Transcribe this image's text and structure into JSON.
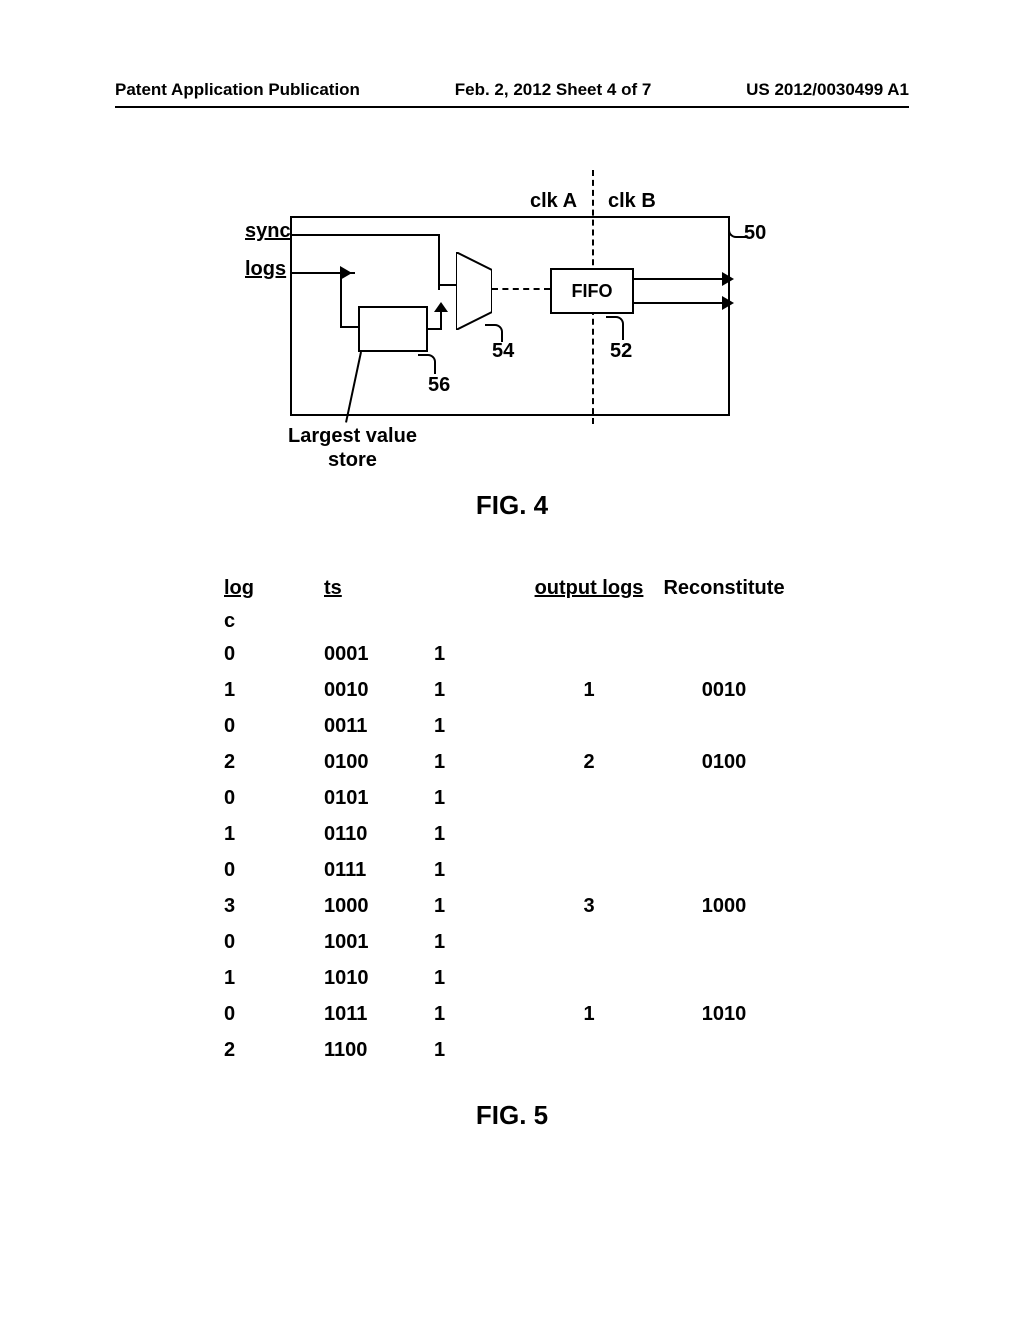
{
  "header": {
    "left": "Patent Application Publication",
    "center": "Feb. 2, 2012   Sheet 4 of 7",
    "right": "US 2012/0030499 A1"
  },
  "fig4": {
    "label_sync": "sync",
    "label_logs": "logs",
    "label_clka": "clk A",
    "label_clkb": "clk B",
    "fifo_label": "FIFO",
    "ref_50": "50",
    "ref_52": "52",
    "ref_54": "54",
    "ref_56": "56",
    "lv_store_label_line1": "Largest value",
    "lv_store_label_line2": "store",
    "caption": "FIG. 4"
  },
  "fig5": {
    "headers": {
      "log": "log",
      "ts": "ts",
      "output_logs": "output logs",
      "reconstitute": "Reconstitute"
    },
    "c_label": "c",
    "rows": [
      {
        "log": "0",
        "ts": "0001",
        "bit": "1",
        "output": "",
        "recon": ""
      },
      {
        "log": "1",
        "ts": "0010",
        "bit": "1",
        "output": "1",
        "recon": "0010"
      },
      {
        "log": "0",
        "ts": "0011",
        "bit": "1",
        "output": "",
        "recon": ""
      },
      {
        "log": "2",
        "ts": "0100",
        "bit": "1",
        "output": "2",
        "recon": "0100"
      },
      {
        "log": "0",
        "ts": "0101",
        "bit": "1",
        "output": "",
        "recon": ""
      },
      {
        "log": "1",
        "ts": "0110",
        "bit": "1",
        "output": "",
        "recon": ""
      },
      {
        "log": "0",
        "ts": "0111",
        "bit": "1",
        "output": "",
        "recon": ""
      },
      {
        "log": "3",
        "ts": "1000",
        "bit": "1",
        "output": "3",
        "recon": "1000"
      },
      {
        "log": "0",
        "ts": "1001",
        "bit": "1",
        "output": "",
        "recon": ""
      },
      {
        "log": "1",
        "ts": "1010",
        "bit": "1",
        "output": "",
        "recon": ""
      },
      {
        "log": "0",
        "ts": "1011",
        "bit": "1",
        "output": "1",
        "recon": "1010"
      },
      {
        "log": "2",
        "ts": "1100",
        "bit": "1",
        "output": "",
        "recon": ""
      }
    ],
    "caption": "FIG. 5"
  }
}
